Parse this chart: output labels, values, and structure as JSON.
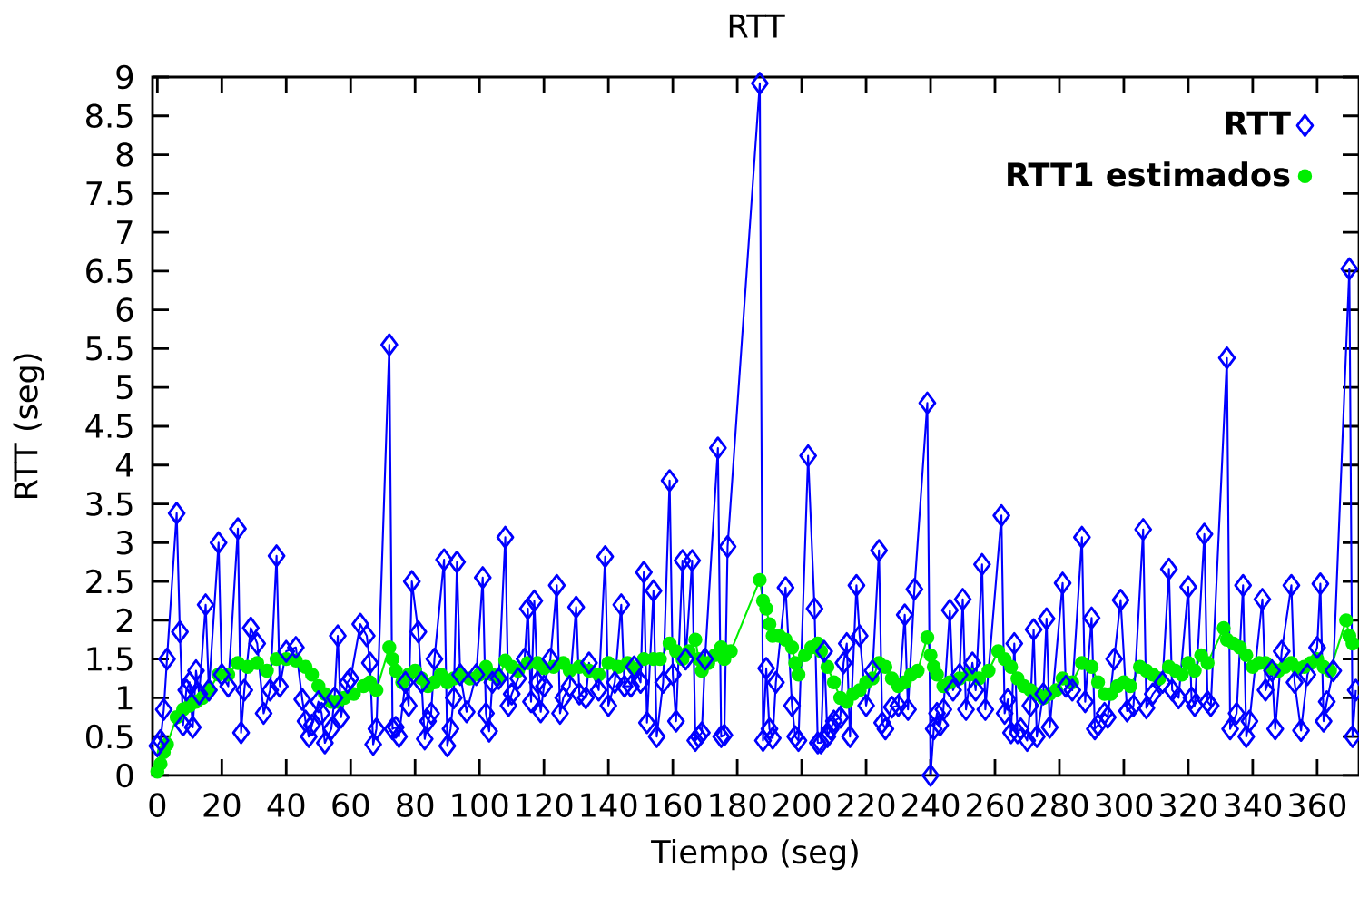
{
  "chart_data": {
    "type": "line",
    "title": "RTT",
    "xlabel": "Tiempo (seg)",
    "ylabel": "RTT (seg)",
    "xlim": [
      -1.5,
      373
    ],
    "xticks": [
      0,
      20,
      40,
      60,
      80,
      100,
      120,
      140,
      160,
      180,
      200,
      220,
      240,
      260,
      280,
      300,
      320,
      340,
      360
    ],
    "ylim": [
      0,
      9
    ],
    "yticks": [
      0,
      0.5,
      1,
      1.5,
      2,
      2.5,
      3,
      3.5,
      4,
      4.5,
      5,
      5.5,
      6,
      6.5,
      7,
      7.5,
      8,
      8.5,
      9
    ],
    "legend": "top right",
    "grid": false,
    "line_style": "solid",
    "series": [
      {
        "name": "**RTT**",
        "color": "#0000ff",
        "marker": "diamond",
        "x": [
          0,
          1,
          2,
          3,
          6,
          7,
          8,
          9,
          10,
          11,
          12,
          13,
          15,
          16,
          19,
          20,
          22,
          25,
          26,
          27,
          29,
          31,
          33,
          35,
          37,
          38,
          40,
          43,
          45,
          46,
          47,
          48,
          50,
          51,
          52,
          54,
          55,
          56,
          57,
          59,
          60,
          63,
          65,
          66,
          67,
          68,
          72,
          73,
          74,
          75,
          77,
          78,
          79,
          81,
          82,
          83,
          84,
          85,
          86,
          89,
          90,
          91,
          92,
          93,
          94,
          96,
          99,
          101,
          102,
          103,
          104,
          106,
          108,
          109,
          110,
          112,
          114,
          115,
          116,
          117,
          118,
          119,
          120,
          122,
          124,
          125,
          126,
          128,
          130,
          131,
          133,
          134,
          137,
          139,
          140,
          142,
          144,
          145,
          147,
          148,
          150,
          151,
          152,
          154,
          155,
          157,
          159,
          160,
          161,
          163,
          164,
          166,
          167,
          168,
          169,
          170,
          174,
          175,
          176,
          177,
          187,
          188,
          189,
          190,
          191,
          192,
          195,
          197,
          198,
          199,
          202,
          204,
          205,
          206,
          207,
          208,
          209,
          210,
          212,
          213,
          214,
          215,
          217,
          218,
          220,
          222,
          224,
          225,
          226,
          228,
          230,
          232,
          233,
          235,
          239,
          240,
          241,
          242,
          243,
          244,
          246,
          247,
          249,
          250,
          251,
          253,
          254,
          256,
          257,
          262,
          263,
          264,
          265,
          266,
          267,
          268,
          270,
          271,
          272,
          273,
          275,
          276,
          277,
          281,
          282,
          284,
          287,
          288,
          290,
          291,
          292,
          294,
          295,
          297,
          299,
          301,
          303,
          306,
          307,
          309,
          312,
          314,
          315,
          317,
          320,
          321,
          322,
          325,
          326,
          327,
          332,
          333,
          335,
          337,
          338,
          339,
          343,
          344,
          346,
          347,
          349,
          352,
          353,
          355,
          357,
          360,
          361,
          362,
          363,
          365,
          370,
          371,
          372
        ],
        "values": [
          0.38,
          0.45,
          0.85,
          1.5,
          3.38,
          1.85,
          0.65,
          1.1,
          1.2,
          0.62,
          1.35,
          1.05,
          2.2,
          1.1,
          3.0,
          1.3,
          1.15,
          3.18,
          0.55,
          1.1,
          1.9,
          1.7,
          0.8,
          1.1,
          2.83,
          1.15,
          1.6,
          1.65,
          0.98,
          0.7,
          0.5,
          0.65,
          0.95,
          0.8,
          0.42,
          0.6,
          1.0,
          1.8,
          0.75,
          1.2,
          1.25,
          1.95,
          1.8,
          1.45,
          0.4,
          0.6,
          5.55,
          0.6,
          0.62,
          0.5,
          1.2,
          0.9,
          2.5,
          1.85,
          1.2,
          0.47,
          0.7,
          0.8,
          1.5,
          2.78,
          0.38,
          0.6,
          1.0,
          2.75,
          1.3,
          0.82,
          1.3,
          2.55,
          0.8,
          0.57,
          1.2,
          1.25,
          3.07,
          0.9,
          1.05,
          1.25,
          1.5,
          2.15,
          0.95,
          2.25,
          1.2,
          0.82,
          1.15,
          1.5,
          2.45,
          0.8,
          1.0,
          1.15,
          2.17,
          1.05,
          1.0,
          1.45,
          1.1,
          2.82,
          0.9,
          1.2,
          2.2,
          1.15,
          1.15,
          1.4,
          1.2,
          2.62,
          0.68,
          2.38,
          0.5,
          1.2,
          3.8,
          1.3,
          0.7,
          2.77,
          1.5,
          2.77,
          0.45,
          0.5,
          0.55,
          1.5,
          4.22,
          0.5,
          0.52,
          2.95,
          8.92,
          0.45,
          1.38,
          0.6,
          0.48,
          1.2,
          2.42,
          0.9,
          0.5,
          0.45,
          4.12,
          2.15,
          0.42,
          0.42,
          1.6,
          0.5,
          0.6,
          0.7,
          0.75,
          1.45,
          1.7,
          0.5,
          2.45,
          1.8,
          0.9,
          1.35,
          2.9,
          0.68,
          0.6,
          0.88,
          0.9,
          2.07,
          0.85,
          2.4,
          4.8,
          0.0,
          0.6,
          0.8,
          0.65,
          0.85,
          2.13,
          1.1,
          1.3,
          2.27,
          0.85,
          1.45,
          1.1,
          2.72,
          0.85,
          3.35,
          0.8,
          0.98,
          0.55,
          1.7,
          0.55,
          0.6,
          0.45,
          0.9,
          1.88,
          0.5,
          1.05,
          2.02,
          0.62,
          2.48,
          1.15,
          1.1,
          3.07,
          0.95,
          2.03,
          0.6,
          0.65,
          0.8,
          0.75,
          1.5,
          2.26,
          0.83,
          0.9,
          3.17,
          0.87,
          1.05,
          1.2,
          2.66,
          1.1,
          1.0,
          2.43,
          1.0,
          0.9,
          3.11,
          0.95,
          0.9,
          5.38,
          0.6,
          0.8,
          2.45,
          0.5,
          0.7,
          2.27,
          1.1,
          1.35,
          0.6,
          1.6,
          2.45,
          1.2,
          0.58,
          1.3,
          1.65,
          2.47,
          0.7,
          0.95,
          1.35,
          6.53,
          0.5,
          1.1
        ]
      },
      {
        "name": "**RTT1 estimados**",
        "color": "#00ee00",
        "marker": "circle",
        "x": [
          0,
          1,
          2,
          3,
          6,
          8,
          10,
          12,
          14,
          16,
          19,
          22,
          25,
          28,
          31,
          34,
          37,
          40,
          43,
          46,
          48,
          50,
          52,
          54,
          56,
          58,
          61,
          64,
          66,
          68,
          72,
          73,
          74,
          76,
          78,
          80,
          82,
          84,
          86,
          88,
          90,
          92,
          94,
          97,
          100,
          102,
          104,
          106,
          108,
          110,
          112,
          115,
          118,
          120,
          123,
          126,
          128,
          131,
          134,
          137,
          140,
          143,
          146,
          148,
          151,
          154,
          156,
          159,
          161,
          163,
          165,
          167,
          168,
          169,
          171,
          173,
          175,
          176,
          178,
          187,
          188,
          189,
          190,
          191,
          193,
          195,
          197,
          198,
          199,
          201,
          203,
          205,
          206,
          208,
          210,
          212,
          214,
          216,
          218,
          220,
          222,
          224,
          226,
          228,
          230,
          232,
          234,
          236,
          239,
          240,
          241,
          242,
          244,
          246,
          249,
          252,
          255,
          258,
          261,
          263,
          265,
          267,
          269,
          271,
          273,
          275,
          277,
          279,
          281,
          284,
          287,
          290,
          292,
          294,
          296,
          298,
          300,
          302,
          305,
          307,
          309,
          311,
          314,
          316,
          318,
          320,
          322,
          324,
          326,
          331,
          332,
          334,
          336,
          338,
          340,
          342,
          344,
          346,
          348,
          350,
          352,
          354,
          356,
          358,
          360,
          362,
          364,
          369,
          370,
          371
        ],
        "values": [
          0.05,
          0.15,
          0.3,
          0.4,
          0.75,
          0.85,
          0.9,
          0.95,
          1.0,
          1.1,
          1.3,
          1.3,
          1.45,
          1.4,
          1.45,
          1.35,
          1.5,
          1.5,
          1.48,
          1.4,
          1.3,
          1.15,
          1.05,
          0.95,
          0.95,
          1.0,
          1.05,
          1.15,
          1.2,
          1.1,
          1.65,
          1.5,
          1.35,
          1.2,
          1.3,
          1.35,
          1.25,
          1.15,
          1.2,
          1.3,
          1.2,
          1.25,
          1.3,
          1.25,
          1.3,
          1.4,
          1.3,
          1.25,
          1.48,
          1.4,
          1.35,
          1.45,
          1.45,
          1.38,
          1.4,
          1.45,
          1.35,
          1.4,
          1.35,
          1.3,
          1.45,
          1.4,
          1.45,
          1.38,
          1.5,
          1.5,
          1.5,
          1.7,
          1.6,
          1.5,
          1.6,
          1.75,
          1.5,
          1.35,
          1.45,
          1.55,
          1.65,
          1.5,
          1.6,
          2.52,
          2.25,
          2.15,
          1.95,
          1.8,
          1.8,
          1.75,
          1.65,
          1.45,
          1.3,
          1.55,
          1.65,
          1.7,
          1.6,
          1.4,
          1.2,
          1.0,
          0.95,
          1.05,
          1.1,
          1.2,
          1.25,
          1.45,
          1.4,
          1.25,
          1.15,
          1.2,
          1.3,
          1.35,
          1.78,
          1.55,
          1.4,
          1.3,
          1.15,
          1.2,
          1.25,
          1.3,
          1.25,
          1.35,
          1.6,
          1.5,
          1.4,
          1.25,
          1.15,
          1.1,
          1.05,
          1.0,
          1.05,
          1.1,
          1.25,
          1.2,
          1.45,
          1.4,
          1.2,
          1.05,
          1.05,
          1.15,
          1.2,
          1.15,
          1.4,
          1.35,
          1.3,
          1.25,
          1.4,
          1.35,
          1.3,
          1.45,
          1.35,
          1.55,
          1.45,
          1.9,
          1.75,
          1.7,
          1.65,
          1.55,
          1.4,
          1.45,
          1.45,
          1.38,
          1.35,
          1.4,
          1.45,
          1.38,
          1.4,
          1.45,
          1.5,
          1.4,
          1.35,
          2.0,
          1.8,
          1.7
        ]
      }
    ]
  }
}
